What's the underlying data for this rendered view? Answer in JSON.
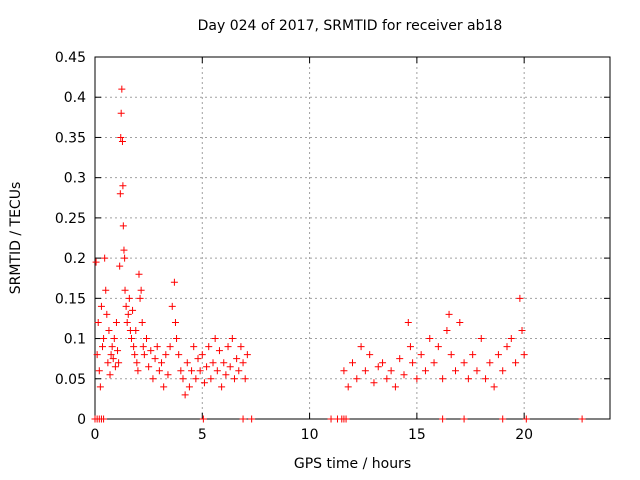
{
  "chart_data": {
    "type": "scatter",
    "title": "Day 024 of 2017, SRMTID for receiver ab18",
    "xlabel": "GPS time / hours",
    "ylabel": "SRMTID / TECUs",
    "xlim": [
      0,
      24
    ],
    "ylim": [
      0,
      0.45
    ],
    "xticks": [
      0,
      5,
      10,
      15,
      20
    ],
    "yticks": [
      0,
      0.05,
      0.1,
      0.15,
      0.2,
      0.25,
      0.3,
      0.35,
      0.4,
      0.45
    ],
    "xtick_labels": [
      "0",
      "5",
      "10",
      "15",
      "20"
    ],
    "ytick_labels": [
      "0",
      "0.05",
      "0.1",
      "0.15",
      "0.2",
      "0.25",
      "0.3",
      "0.35",
      "0.4",
      "0.45"
    ],
    "grid": true,
    "marker": "+",
    "color": "#ff0000",
    "series": [
      {
        "name": "SRMTID",
        "points": [
          [
            0.05,
            0.195
          ],
          [
            0.1,
            0.08
          ],
          [
            0.15,
            0.12
          ],
          [
            0.2,
            0.06
          ],
          [
            0.25,
            0.04
          ],
          [
            0.3,
            0.14
          ],
          [
            0.35,
            0.09
          ],
          [
            0.4,
            0.1
          ],
          [
            0.45,
            0.2
          ],
          [
            0.5,
            0.16
          ],
          [
            0.55,
            0.13
          ],
          [
            0.6,
            0.07
          ],
          [
            0.65,
            0.11
          ],
          [
            0.7,
            0.055
          ],
          [
            0.75,
            0.08
          ],
          [
            0.8,
            0.09
          ],
          [
            0.85,
            0.075
          ],
          [
            0.9,
            0.1
          ],
          [
            0.95,
            0.065
          ],
          [
            1.0,
            0.12
          ],
          [
            1.05,
            0.085
          ],
          [
            1.1,
            0.07
          ],
          [
            1.15,
            0.19
          ],
          [
            1.18,
            0.28
          ],
          [
            1.2,
            0.35
          ],
          [
            1.22,
            0.38
          ],
          [
            1.25,
            0.41
          ],
          [
            1.28,
            0.345
          ],
          [
            1.3,
            0.29
          ],
          [
            1.32,
            0.24
          ],
          [
            1.35,
            0.21
          ],
          [
            1.38,
            0.2
          ],
          [
            1.4,
            0.16
          ],
          [
            1.45,
            0.14
          ],
          [
            1.5,
            0.12
          ],
          [
            1.55,
            0.13
          ],
          [
            1.6,
            0.15
          ],
          [
            1.65,
            0.11
          ],
          [
            1.7,
            0.1
          ],
          [
            1.75,
            0.135
          ],
          [
            1.8,
            0.09
          ],
          [
            1.85,
            0.08
          ],
          [
            1.9,
            0.11
          ],
          [
            1.95,
            0.07
          ],
          [
            2.0,
            0.06
          ],
          [
            2.05,
            0.18
          ],
          [
            2.1,
            0.15
          ],
          [
            2.15,
            0.16
          ],
          [
            2.2,
            0.12
          ],
          [
            2.25,
            0.09
          ],
          [
            2.3,
            0.08
          ],
          [
            2.4,
            0.1
          ],
          [
            2.5,
            0.065
          ],
          [
            2.6,
            0.085
          ],
          [
            2.7,
            0.05
          ],
          [
            2.8,
            0.075
          ],
          [
            2.9,
            0.09
          ],
          [
            3.0,
            0.06
          ],
          [
            3.1,
            0.07
          ],
          [
            3.2,
            0.04
          ],
          [
            3.3,
            0.08
          ],
          [
            3.4,
            0.055
          ],
          [
            3.5,
            0.09
          ],
          [
            3.6,
            0.14
          ],
          [
            3.7,
            0.17
          ],
          [
            3.75,
            0.12
          ],
          [
            3.8,
            0.1
          ],
          [
            3.9,
            0.08
          ],
          [
            4.0,
            0.06
          ],
          [
            4.1,
            0.05
          ],
          [
            4.2,
            0.03
          ],
          [
            4.3,
            0.07
          ],
          [
            4.4,
            0.04
          ],
          [
            4.5,
            0.06
          ],
          [
            4.6,
            0.09
          ],
          [
            4.7,
            0.05
          ],
          [
            4.8,
            0.075
          ],
          [
            4.9,
            0.06
          ],
          [
            5.0,
            0.08
          ],
          [
            5.1,
            0.045
          ],
          [
            5.2,
            0.065
          ],
          [
            5.3,
            0.09
          ],
          [
            5.4,
            0.05
          ],
          [
            5.5,
            0.07
          ],
          [
            5.6,
            0.1
          ],
          [
            5.7,
            0.06
          ],
          [
            5.8,
            0.085
          ],
          [
            5.9,
            0.04
          ],
          [
            6.0,
            0.07
          ],
          [
            6.1,
            0.055
          ],
          [
            6.2,
            0.09
          ],
          [
            6.3,
            0.065
          ],
          [
            6.4,
            0.1
          ],
          [
            6.5,
            0.05
          ],
          [
            6.6,
            0.075
          ],
          [
            6.7,
            0.06
          ],
          [
            6.8,
            0.09
          ],
          [
            6.9,
            0.07
          ],
          [
            7.0,
            0.05
          ],
          [
            7.1,
            0.08
          ],
          [
            0.0,
            0.0
          ],
          [
            0.1,
            0.0
          ],
          [
            0.2,
            0.0
          ],
          [
            0.3,
            0.0
          ],
          [
            0.4,
            0.0
          ],
          [
            5.05,
            0.0
          ],
          [
            6.9,
            0.0
          ],
          [
            7.3,
            0.0
          ],
          [
            11.0,
            0.0
          ],
          [
            11.3,
            0.0
          ],
          [
            11.5,
            0.0
          ],
          [
            11.6,
            0.0
          ],
          [
            11.7,
            0.0
          ],
          [
            11.6,
            0.06
          ],
          [
            11.8,
            0.04
          ],
          [
            12.0,
            0.07
          ],
          [
            12.2,
            0.05
          ],
          [
            12.4,
            0.09
          ],
          [
            12.6,
            0.06
          ],
          [
            12.8,
            0.08
          ],
          [
            13.0,
            0.045
          ],
          [
            13.2,
            0.065
          ],
          [
            13.4,
            0.07
          ],
          [
            13.6,
            0.05
          ],
          [
            13.8,
            0.06
          ],
          [
            14.0,
            0.04
          ],
          [
            14.2,
            0.075
          ],
          [
            14.4,
            0.055
          ],
          [
            14.6,
            0.12
          ],
          [
            14.7,
            0.09
          ],
          [
            14.8,
            0.07
          ],
          [
            15.0,
            0.05
          ],
          [
            15.2,
            0.08
          ],
          [
            15.4,
            0.06
          ],
          [
            15.6,
            0.1
          ],
          [
            15.8,
            0.07
          ],
          [
            16.0,
            0.09
          ],
          [
            16.2,
            0.05
          ],
          [
            16.4,
            0.11
          ],
          [
            16.5,
            0.13
          ],
          [
            16.6,
            0.08
          ],
          [
            16.8,
            0.06
          ],
          [
            17.0,
            0.12
          ],
          [
            17.2,
            0.07
          ],
          [
            17.4,
            0.05
          ],
          [
            17.6,
            0.08
          ],
          [
            17.8,
            0.06
          ],
          [
            18.0,
            0.1
          ],
          [
            18.2,
            0.05
          ],
          [
            18.4,
            0.07
          ],
          [
            18.6,
            0.04
          ],
          [
            18.8,
            0.08
          ],
          [
            19.0,
            0.06
          ],
          [
            19.2,
            0.09
          ],
          [
            19.4,
            0.1
          ],
          [
            19.6,
            0.07
          ],
          [
            19.8,
            0.15
          ],
          [
            19.9,
            0.11
          ],
          [
            20.0,
            0.08
          ],
          [
            16.2,
            0.0
          ],
          [
            17.2,
            0.0
          ],
          [
            19.0,
            0.0
          ],
          [
            20.1,
            0.0
          ],
          [
            22.7,
            0.0
          ]
        ]
      }
    ]
  }
}
